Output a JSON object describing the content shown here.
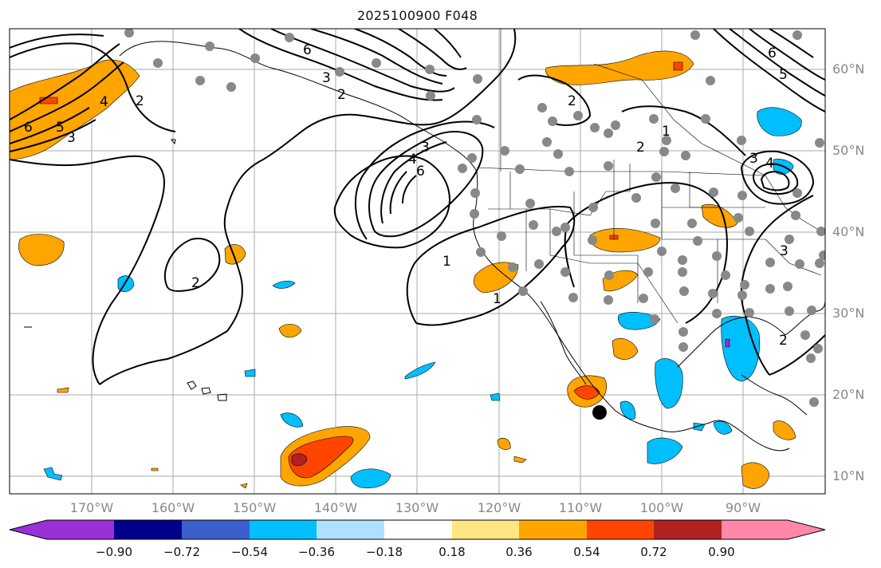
{
  "title": "2025100900 F048",
  "map": {
    "lat_ticks": [
      "60°N",
      "50°N",
      "40°N",
      "30°N",
      "20°N",
      "10°N"
    ],
    "lon_ticks": [
      "170°W",
      "160°W",
      "150°W",
      "140°W",
      "130°W",
      "120°W",
      "110°W",
      "100°W",
      "90°W"
    ],
    "contour_labels": [
      "6",
      "5",
      "4",
      "3",
      "2",
      "1"
    ]
  },
  "colorbar": {
    "tick_labels": [
      "−0.90",
      "−0.72",
      "−0.54",
      "−0.36",
      "−0.18",
      "0.18",
      "0.36",
      "0.54",
      "0.72",
      "0.90"
    ],
    "colors": [
      "#9b30d8",
      "#00008b",
      "#3a5fcd",
      "#00bfff",
      "#b0e0ff",
      "#ffffff",
      "#ffe680",
      "#ffa500",
      "#ff4500",
      "#b22222",
      "#ff88aa"
    ]
  }
}
